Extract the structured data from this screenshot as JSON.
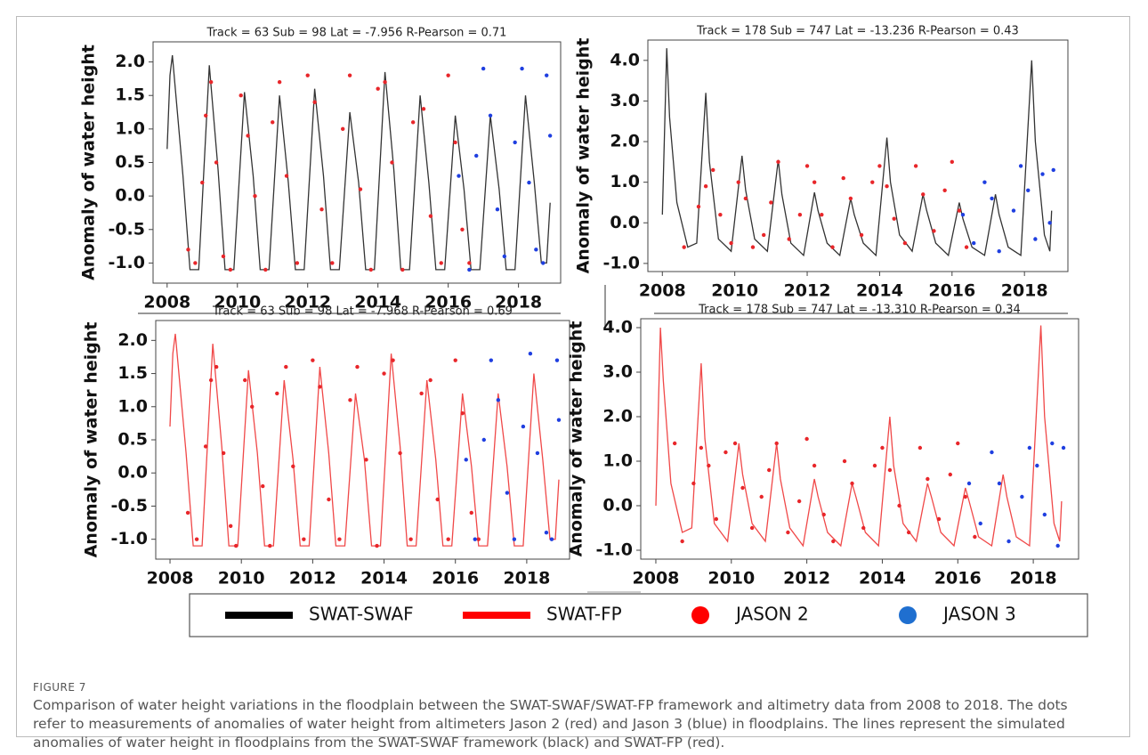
{
  "chart_data": [
    {
      "type": "line",
      "title": "Track = 63 Sub = 98 Lat = -7.956 R-Pearson = 0.71",
      "ylabel": "Anomaly of water height",
      "xlim": [
        2007.6,
        2019.2
      ],
      "xticks": [
        2008,
        2010,
        2012,
        2014,
        2016,
        2018
      ],
      "ylim": [
        -1.3,
        2.3
      ],
      "yticks": [
        {
          "value": -1,
          "label": "-1.0"
        },
        -0.5,
        {
          "value": 0,
          "label": "0.0"
        },
        0.5,
        {
          "value": 1,
          "label": "1.0"
        },
        1.5,
        {
          "value": 2,
          "label": "2.0"
        }
      ],
      "series": [
        {
          "type": "line",
          "color": "#333333",
          "x": [
            2008.0,
            2008.08,
            2008.15,
            2008.45,
            2008.65,
            2008.9,
            2009.2,
            2009.45,
            2009.65,
            2009.9,
            2010.2,
            2010.45,
            2010.65,
            2010.9,
            2011.2,
            2011.45,
            2011.65,
            2011.9,
            2012.2,
            2012.45,
            2012.65,
            2012.9,
            2013.2,
            2013.45,
            2013.65,
            2013.9,
            2014.2,
            2014.45,
            2014.65,
            2014.9,
            2015.2,
            2015.45,
            2015.65,
            2015.9,
            2016.2,
            2016.45,
            2016.65,
            2016.9,
            2017.2,
            2017.45,
            2017.65,
            2017.9,
            2018.2,
            2018.45,
            2018.65,
            2018.8,
            2018.9
          ],
          "values": [
            0.7,
            1.8,
            2.1,
            0.3,
            -1.1,
            -1.1,
            1.95,
            0.4,
            -1.1,
            -1.1,
            1.55,
            0.3,
            -1.1,
            -1.1,
            1.5,
            0.2,
            -1.1,
            -1.1,
            1.6,
            0.3,
            -1.1,
            -1.1,
            1.25,
            0.2,
            -1.1,
            -1.1,
            1.85,
            0.4,
            -1.1,
            -1.1,
            1.5,
            0.2,
            -1.1,
            -1.1,
            1.2,
            0.1,
            -1.1,
            -1.1,
            1.2,
            0.1,
            -1.1,
            -1.1,
            1.5,
            0.2,
            -1.0,
            -1.0,
            -0.1
          ]
        },
        {
          "type": "scatter",
          "color": "#e8262a",
          "x": [
            2008.6,
            2008.8,
            2009.0,
            2009.1,
            2009.25,
            2009.4,
            2009.6,
            2009.8,
            2010.1,
            2010.3,
            2010.5,
            2010.8,
            2011.0,
            2011.2,
            2011.4,
            2011.7,
            2012.0,
            2012.2,
            2012.4,
            2012.7,
            2013.0,
            2013.2,
            2013.5,
            2013.8,
            2014.0,
            2014.2,
            2014.4,
            2014.7,
            2015.0,
            2015.3,
            2015.5,
            2015.8,
            2016.0,
            2016.2,
            2016.4,
            2016.6
          ],
          "values": [
            -0.8,
            -1.0,
            0.2,
            1.2,
            1.7,
            0.5,
            -0.9,
            -1.1,
            1.5,
            0.9,
            0.0,
            -1.1,
            1.1,
            1.7,
            0.3,
            -1.0,
            1.8,
            1.4,
            -0.2,
            -1.0,
            1.0,
            1.8,
            0.1,
            -1.1,
            1.6,
            1.7,
            0.5,
            -1.1,
            1.1,
            1.3,
            -0.3,
            -1.0,
            1.8,
            0.8,
            -0.5,
            -1.0
          ]
        },
        {
          "type": "scatter",
          "color": "#1f3fe0",
          "x": [
            2016.3,
            2016.6,
            2016.8,
            2017.0,
            2017.2,
            2017.4,
            2017.6,
            2017.9,
            2018.1,
            2018.3,
            2018.5,
            2018.7,
            2018.8,
            2018.9
          ],
          "values": [
            0.3,
            -1.1,
            0.6,
            1.9,
            1.2,
            -0.2,
            -0.9,
            0.8,
            1.9,
            0.2,
            -0.8,
            -1.0,
            1.8,
            0.9
          ]
        }
      ]
    },
    {
      "type": "line",
      "title": "Track = 178 Sub = 747 Lat = -13.236 R-Pearson = 0.43",
      "ylabel": "Anomaly of water height",
      "xlim": [
        2007.6,
        2019.2
      ],
      "xticks": [
        2008,
        2010,
        2012,
        2014,
        2016,
        2018
      ],
      "ylim": [
        -1.2,
        4.5
      ],
      "yticks": [
        {
          "value": -1,
          "label": "-1.0"
        },
        {
          "value": 0,
          "label": "0.0"
        },
        {
          "value": 1,
          "label": "1.0"
        },
        {
          "value": 2,
          "label": "2.0"
        },
        {
          "value": 3,
          "label": "3.0"
        },
        {
          "value": 4,
          "label": "4.0"
        }
      ],
      "series": [
        {
          "type": "line",
          "color": "#333333",
          "x": [
            2008.0,
            2008.12,
            2008.2,
            2008.4,
            2008.7,
            2008.95,
            2009.2,
            2009.3,
            2009.55,
            2009.9,
            2010.2,
            2010.3,
            2010.55,
            2010.9,
            2011.2,
            2011.3,
            2011.55,
            2011.9,
            2012.2,
            2012.3,
            2012.55,
            2012.9,
            2013.2,
            2013.3,
            2013.55,
            2013.9,
            2014.2,
            2014.3,
            2014.55,
            2014.9,
            2015.2,
            2015.3,
            2015.55,
            2015.9,
            2016.2,
            2016.3,
            2016.55,
            2016.9,
            2017.2,
            2017.3,
            2017.55,
            2017.9,
            2018.2,
            2018.3,
            2018.55,
            2018.7,
            2018.75
          ],
          "values": [
            0.2,
            4.3,
            2.6,
            0.5,
            -0.6,
            -0.5,
            3.2,
            1.5,
            -0.4,
            -0.7,
            1.65,
            0.8,
            -0.4,
            -0.7,
            1.55,
            0.7,
            -0.5,
            -0.8,
            0.75,
            0.3,
            -0.5,
            -0.8,
            0.6,
            0.2,
            -0.5,
            -0.8,
            2.1,
            1.0,
            -0.3,
            -0.7,
            0.7,
            0.3,
            -0.5,
            -0.8,
            0.5,
            0.1,
            -0.6,
            -0.8,
            0.7,
            0.2,
            -0.6,
            -0.8,
            4.0,
            2.0,
            -0.3,
            -0.7,
            0.3
          ]
        },
        {
          "type": "scatter",
          "color": "#e8262a",
          "x": [
            2008.6,
            2009.0,
            2009.2,
            2009.4,
            2009.6,
            2009.9,
            2010.1,
            2010.3,
            2010.5,
            2010.8,
            2011.0,
            2011.2,
            2011.5,
            2011.8,
            2012.0,
            2012.2,
            2012.4,
            2012.7,
            2013.0,
            2013.2,
            2013.5,
            2013.8,
            2014.0,
            2014.2,
            2014.4,
            2014.7,
            2015.0,
            2015.2,
            2015.5,
            2015.8,
            2016.0,
            2016.2,
            2016.4
          ],
          "values": [
            -0.6,
            0.4,
            0.9,
            1.3,
            0.2,
            -0.5,
            1.0,
            0.6,
            -0.6,
            -0.3,
            0.5,
            1.5,
            -0.4,
            0.2,
            1.4,
            1.0,
            0.2,
            -0.6,
            1.1,
            0.6,
            -0.3,
            1.0,
            1.4,
            0.9,
            0.1,
            -0.5,
            1.4,
            0.7,
            -0.2,
            0.8,
            1.5,
            0.3,
            -0.6
          ]
        },
        {
          "type": "scatter",
          "color": "#1f3fe0",
          "x": [
            2016.3,
            2016.6,
            2016.9,
            2017.1,
            2017.3,
            2017.7,
            2017.9,
            2018.1,
            2018.3,
            2018.5,
            2018.7,
            2018.8
          ],
          "values": [
            0.2,
            -0.5,
            1.0,
            0.6,
            -0.7,
            0.3,
            1.4,
            0.8,
            -0.4,
            1.2,
            0.0,
            1.3
          ]
        }
      ]
    },
    {
      "type": "line",
      "title": "Track = 63 Sub = 98 Lat = -7.968 R-Pearson = 0.69",
      "ylabel": "Anomaly of water height",
      "xlim": [
        2007.6,
        2019.2
      ],
      "xticks": [
        2008,
        2010,
        2012,
        2014,
        2016,
        2018
      ],
      "ylim": [
        -1.3,
        2.3
      ],
      "yticks": [
        {
          "value": -1,
          "label": "-1.0"
        },
        -0.5,
        {
          "value": 0,
          "label": "0.0"
        },
        0.5,
        {
          "value": 1,
          "label": "1.0"
        },
        1.5,
        {
          "value": 2,
          "label": "2.0"
        }
      ],
      "series": [
        {
          "type": "line",
          "color": "#f04848",
          "x": [
            2008.0,
            2008.08,
            2008.15,
            2008.45,
            2008.65,
            2008.9,
            2009.2,
            2009.45,
            2009.65,
            2009.9,
            2010.2,
            2010.45,
            2010.65,
            2010.9,
            2011.2,
            2011.45,
            2011.65,
            2011.9,
            2012.2,
            2012.45,
            2012.65,
            2012.9,
            2013.2,
            2013.45,
            2013.65,
            2013.9,
            2014.2,
            2014.45,
            2014.65,
            2014.9,
            2015.2,
            2015.45,
            2015.65,
            2015.9,
            2016.2,
            2016.45,
            2016.65,
            2016.9,
            2017.2,
            2017.45,
            2017.65,
            2017.9,
            2018.2,
            2018.45,
            2018.65,
            2018.8,
            2018.9
          ],
          "values": [
            0.7,
            1.8,
            2.1,
            0.3,
            -1.1,
            -1.1,
            1.95,
            0.4,
            -1.1,
            -1.1,
            1.55,
            0.3,
            -1.1,
            -1.1,
            1.4,
            0.2,
            -1.1,
            -1.1,
            1.6,
            0.3,
            -1.1,
            -1.1,
            1.2,
            0.2,
            -1.1,
            -1.1,
            1.8,
            0.4,
            -1.1,
            -1.1,
            1.4,
            0.2,
            -1.1,
            -1.1,
            1.2,
            0.1,
            -1.1,
            -1.1,
            1.2,
            0.1,
            -1.1,
            -1.1,
            1.5,
            0.2,
            -1.0,
            -1.0,
            -0.1
          ]
        },
        {
          "type": "scatter",
          "color": "#e8262a",
          "x": [
            2008.5,
            2008.75,
            2009.0,
            2009.15,
            2009.3,
            2009.5,
            2009.7,
            2009.85,
            2010.1,
            2010.3,
            2010.6,
            2010.8,
            2011.0,
            2011.25,
            2011.45,
            2011.75,
            2012.0,
            2012.2,
            2012.45,
            2012.75,
            2013.05,
            2013.25,
            2013.5,
            2013.8,
            2014.0,
            2014.25,
            2014.45,
            2014.75,
            2015.05,
            2015.3,
            2015.5,
            2015.8,
            2016.0,
            2016.2,
            2016.45,
            2016.65
          ],
          "values": [
            -0.6,
            -1.0,
            0.4,
            1.4,
            1.6,
            0.3,
            -0.8,
            -1.1,
            1.4,
            1.0,
            -0.2,
            -1.1,
            1.2,
            1.6,
            0.1,
            -1.0,
            1.7,
            1.3,
            -0.4,
            -1.0,
            1.1,
            1.6,
            0.2,
            -1.1,
            1.5,
            1.7,
            0.3,
            -1.0,
            1.2,
            1.4,
            -0.4,
            -1.0,
            1.7,
            0.9,
            -0.6,
            -1.0
          ]
        },
        {
          "type": "scatter",
          "color": "#1f3fe0",
          "x": [
            2016.3,
            2016.55,
            2016.8,
            2017.0,
            2017.2,
            2017.45,
            2017.65,
            2017.9,
            2018.1,
            2018.3,
            2018.55,
            2018.7,
            2018.85,
            2018.9
          ],
          "values": [
            0.2,
            -1.0,
            0.5,
            1.7,
            1.1,
            -0.3,
            -1.0,
            0.7,
            1.8,
            0.3,
            -0.9,
            -1.0,
            1.7,
            0.8
          ]
        }
      ]
    },
    {
      "type": "line",
      "title": "Track = 178 Sub = 747 Lat = -13.310 R-Pearson = 0.34",
      "ylabel": "Anomaly of water height",
      "xlim": [
        2007.6,
        2019.2
      ],
      "xticks": [
        2008,
        2010,
        2012,
        2014,
        2016,
        2018
      ],
      "ylim": [
        -1.2,
        4.2
      ],
      "yticks": [
        {
          "value": -1,
          "label": "-1.0"
        },
        {
          "value": 0,
          "label": "0.0"
        },
        {
          "value": 1,
          "label": "1.0"
        },
        {
          "value": 2,
          "label": "2.0"
        },
        {
          "value": 3,
          "label": "3.0"
        },
        {
          "value": 4,
          "label": "4.0"
        }
      ],
      "series": [
        {
          "type": "line",
          "color": "#f04848",
          "x": [
            2008.0,
            2008.12,
            2008.2,
            2008.4,
            2008.7,
            2008.95,
            2009.2,
            2009.3,
            2009.55,
            2009.9,
            2010.2,
            2010.3,
            2010.55,
            2010.9,
            2011.2,
            2011.3,
            2011.55,
            2011.9,
            2012.2,
            2012.3,
            2012.55,
            2012.9,
            2013.2,
            2013.3,
            2013.55,
            2013.9,
            2014.2,
            2014.3,
            2014.55,
            2014.9,
            2015.2,
            2015.3,
            2015.55,
            2015.9,
            2016.2,
            2016.3,
            2016.55,
            2016.9,
            2017.2,
            2017.3,
            2017.55,
            2017.9,
            2018.2,
            2018.3,
            2018.55,
            2018.7,
            2018.75
          ],
          "values": [
            0.0,
            4.0,
            2.8,
            0.5,
            -0.6,
            -0.5,
            3.2,
            1.5,
            -0.4,
            -0.8,
            1.4,
            0.7,
            -0.4,
            -0.8,
            1.4,
            0.6,
            -0.5,
            -0.9,
            0.6,
            0.2,
            -0.6,
            -0.9,
            0.5,
            0.2,
            -0.6,
            -0.9,
            2.0,
            0.9,
            -0.4,
            -0.8,
            0.5,
            0.2,
            -0.6,
            -0.9,
            0.4,
            0.1,
            -0.7,
            -0.9,
            0.7,
            0.2,
            -0.7,
            -0.9,
            4.05,
            2.0,
            -0.4,
            -0.8,
            0.1
          ]
        },
        {
          "type": "scatter",
          "color": "#e8262a",
          "x": [
            2008.5,
            2008.7,
            2009.0,
            2009.2,
            2009.4,
            2009.6,
            2009.85,
            2010.1,
            2010.3,
            2010.55,
            2010.8,
            2011.0,
            2011.2,
            2011.5,
            2011.8,
            2012.0,
            2012.2,
            2012.45,
            2012.7,
            2013.0,
            2013.2,
            2013.5,
            2013.8,
            2014.0,
            2014.2,
            2014.45,
            2014.7,
            2015.0,
            2015.2,
            2015.5,
            2015.8,
            2016.0,
            2016.2,
            2016.45
          ],
          "values": [
            1.4,
            -0.8,
            0.5,
            1.3,
            0.9,
            -0.3,
            1.2,
            1.4,
            0.4,
            -0.5,
            0.2,
            0.8,
            1.4,
            -0.6,
            0.1,
            1.5,
            0.9,
            -0.2,
            -0.8,
            1.0,
            0.5,
            -0.5,
            0.9,
            1.3,
            0.8,
            0.0,
            -0.6,
            1.3,
            0.6,
            -0.3,
            0.7,
            1.4,
            0.2,
            -0.7
          ]
        },
        {
          "type": "scatter",
          "color": "#1f3fe0",
          "x": [
            2016.3,
            2016.6,
            2016.9,
            2017.1,
            2017.35,
            2017.7,
            2017.9,
            2018.1,
            2018.3,
            2018.5,
            2018.65,
            2018.8
          ],
          "values": [
            0.5,
            -0.4,
            1.2,
            0.5,
            -0.8,
            0.2,
            1.3,
            0.9,
            -0.2,
            1.4,
            -0.9,
            1.3
          ]
        }
      ]
    }
  ],
  "legend": [
    {
      "name": "SWAT-SWAF",
      "color": "#000000",
      "marker": "line"
    },
    {
      "name": "SWAT-FP",
      "color": "#ff0000",
      "marker": "line"
    },
    {
      "name": "JASON 2",
      "color": "#ff0000",
      "marker": "dot"
    },
    {
      "name": "JASON 3",
      "color": "#1f6fd0",
      "marker": "dot"
    }
  ],
  "caption": {
    "label": "FIGURE 7",
    "text": "Comparison of water height variations in the floodplain between the SWAT-SWAF/SWAT-FP framework and altimetry data from 2008 to 2018. The dots refer to measurements of anomalies of water height from altimeters Jason 2 (red) and Jason 3 (blue) in floodplains. The lines represent the simulated anomalies of water height in floodplains from the SWAT-SWAF framework (black) and SWAT-FP (red)."
  }
}
